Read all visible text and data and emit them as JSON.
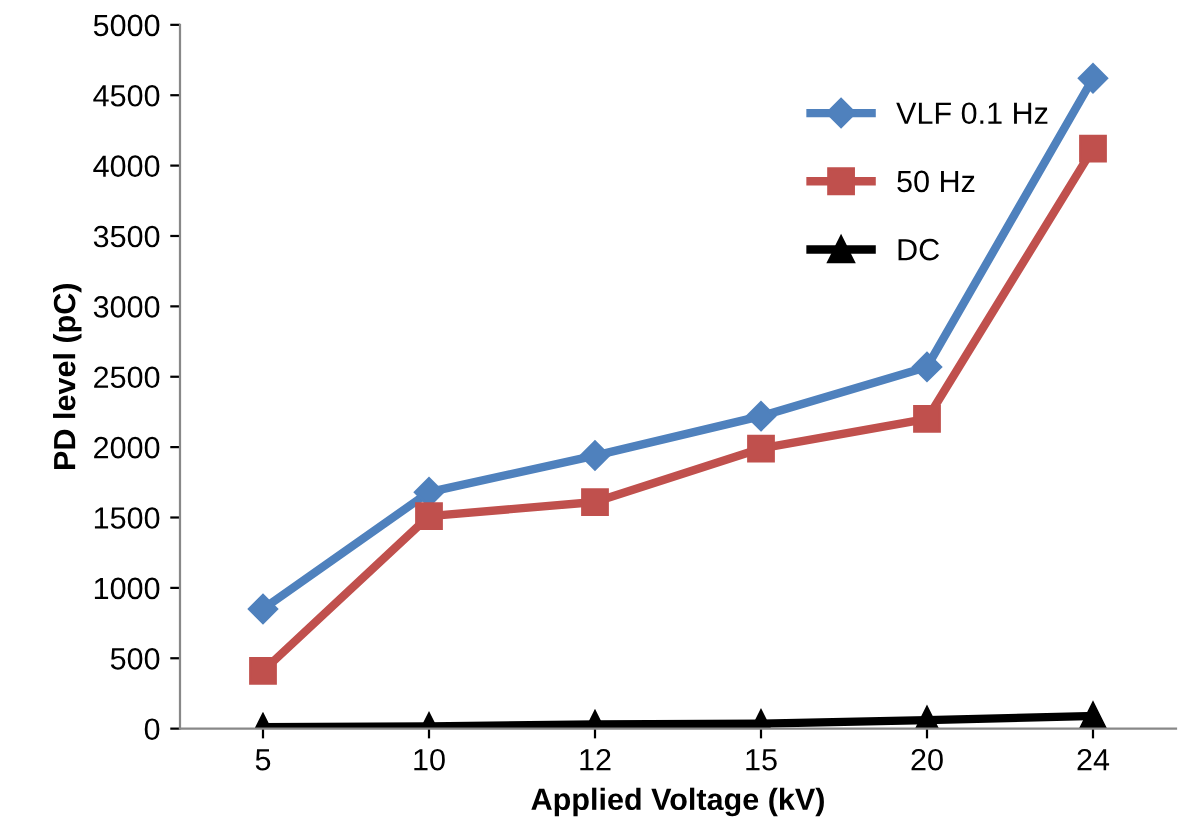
{
  "chart_data": {
    "type": "line",
    "xlabel": "Applied Voltage (kV)",
    "ylabel": "PD level (pC)",
    "categories": [
      "5",
      "10",
      "12",
      "15",
      "20",
      "24"
    ],
    "series": [
      {
        "name": "VLF 0.1 Hz",
        "color": "#4f81bd",
        "marker": "diamond",
        "values": [
          850,
          1680,
          1940,
          2220,
          2570,
          4620
        ]
      },
      {
        "name": "50 Hz",
        "color": "#c0504d",
        "marker": "square",
        "values": [
          410,
          1510,
          1610,
          1990,
          2200,
          4120
        ]
      },
      {
        "name": "DC",
        "color": "#000000",
        "marker": "triangle",
        "values": [
          10,
          15,
          30,
          35,
          60,
          90
        ]
      }
    ],
    "ylim": [
      0,
      5000
    ],
    "yticks": [
      0,
      500,
      1000,
      1500,
      2000,
      2500,
      3000,
      3500,
      4000,
      4500,
      5000
    ],
    "grid": false,
    "legend": "top right",
    "line_style": "solid"
  }
}
